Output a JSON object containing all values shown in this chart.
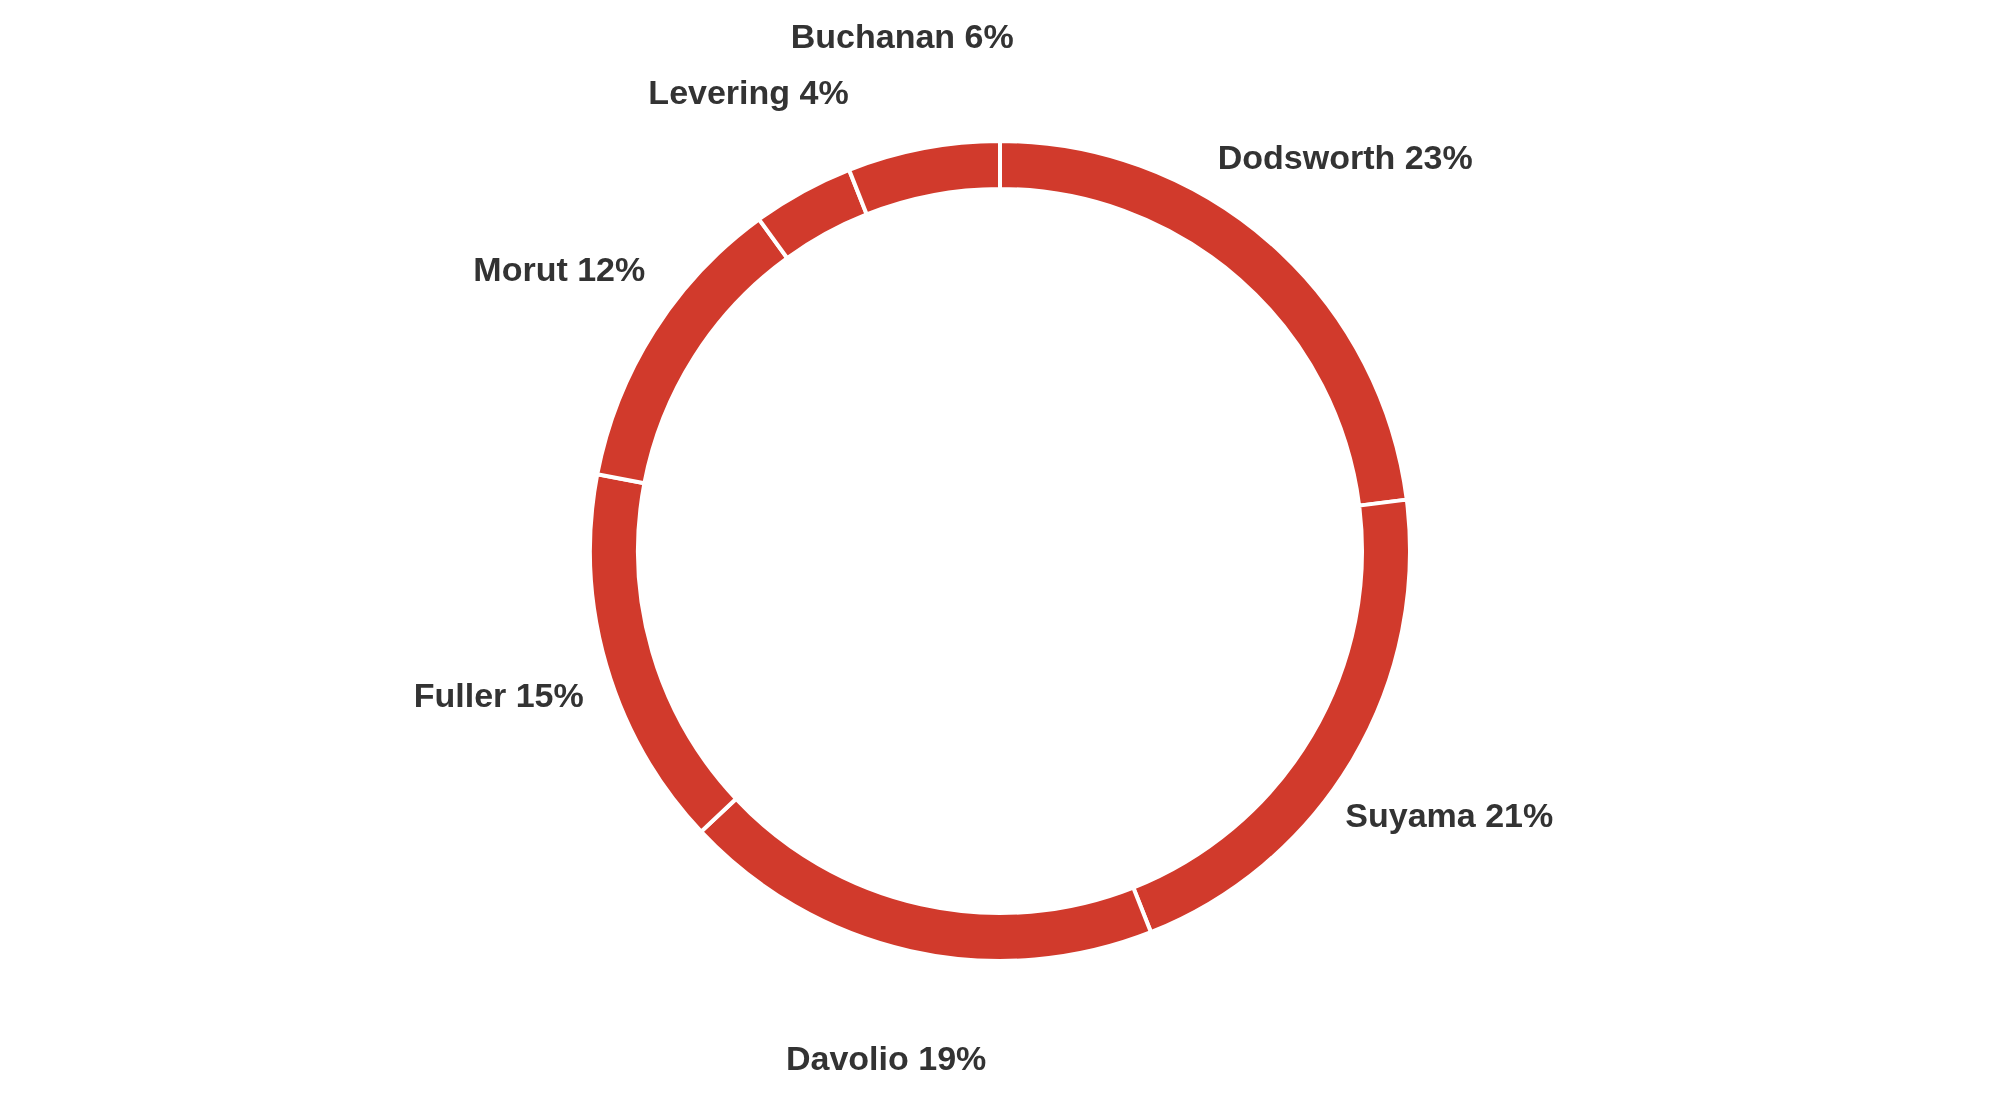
{
  "chart_data": {
    "type": "donut",
    "categories": [
      "Dodsworth",
      "Suyama",
      "Davolio",
      "Fuller",
      "Morut",
      "Levering",
      "Buchanan"
    ],
    "values": [
      23,
      21,
      19,
      15,
      12,
      4,
      6
    ],
    "value_labels": [
      "23%",
      "21%",
      "19%",
      "15%",
      "12%",
      "4%",
      "6%"
    ],
    "colors": [
      "#d13a2c",
      "#d13a2c",
      "#d13a2c",
      "#d13a2c",
      "#d13a2c",
      "#d13a2c",
      "#d13a2c"
    ]
  }
}
